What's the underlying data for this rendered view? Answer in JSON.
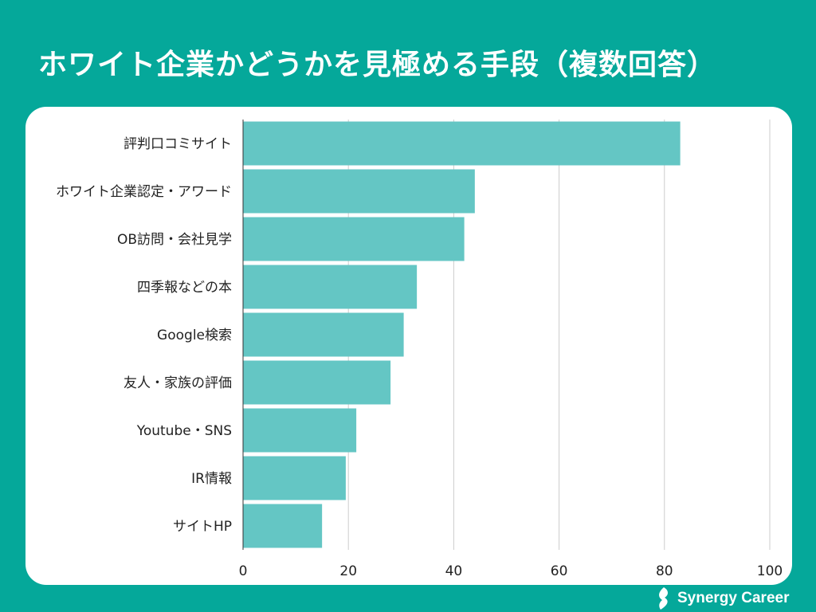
{
  "title": "ホワイト企業かどうかを見極める手段（複数回答）",
  "brand": {
    "name": "Synergy Career",
    "logo_icon": "synergy-leaf-logo-icon"
  },
  "colors": {
    "background": "#05A89A",
    "bar": "#64C6C4",
    "card": "#FFFFFF",
    "grid": "#CCCCCC"
  },
  "chart_data": {
    "type": "bar",
    "orientation": "horizontal",
    "title": "ホワイト企業かどうかを見極める手段（複数回答）",
    "categories": [
      "評判口コミサイト",
      "ホワイト企業認定・アワード",
      "OB訪問・会社見学",
      "四季報などの本",
      "Google検索",
      "友人・家族の評価",
      "Youtube・SNS",
      "IR情報",
      "サイトHP"
    ],
    "values": [
      83,
      44,
      42,
      33,
      30.5,
      28,
      21.5,
      19.5,
      15
    ],
    "xlim": [
      0,
      100
    ],
    "xticks": [
      0,
      20,
      40,
      60,
      80,
      100
    ],
    "xlabel": "",
    "ylabel": "",
    "grid": true,
    "legend": "none"
  }
}
